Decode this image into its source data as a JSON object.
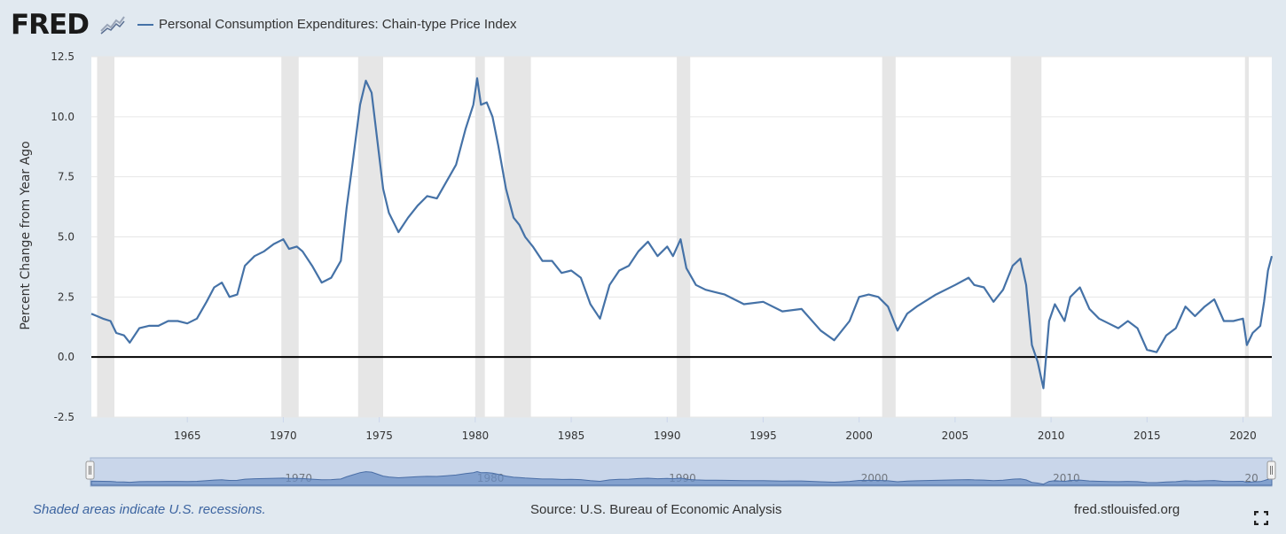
{
  "header": {
    "logo_text": "FRED",
    "logo_icon": "fred-chart-icon",
    "legend_label": "Personal Consumption Expenditures: Chain-type Price Index"
  },
  "colors": {
    "background": "#e1e9f0",
    "plot_background": "#ffffff",
    "series": "#4572a7",
    "recession": "#e6e6e6",
    "gridline": "#e6e6e6",
    "zero_line": "#000000",
    "navigator_fill": "#c9d6ea",
    "navigator_area": "#6b8fc4",
    "footnote": "#3c64a0"
  },
  "footer": {
    "note": "Shaded areas indicate U.S. recessions.",
    "source": "Source: U.S. Bureau of Economic Analysis",
    "site": "fred.stlouisfed.org",
    "fullscreen_icon": "fullscreen-icon"
  },
  "chart_data": {
    "type": "line",
    "title": "Personal Consumption Expenditures: Chain-type Price Index",
    "ylabel": "Percent Change from Year Ago",
    "xlabel": "",
    "xlim": [
      1960.0,
      2021.5
    ],
    "ylim": [
      -2.5,
      12.5
    ],
    "y_ticks": [
      "-2.5",
      "0.0",
      "2.5",
      "5.0",
      "7.5",
      "10.0",
      "12.5"
    ],
    "y_tick_values": [
      -2.5,
      0,
      2.5,
      5,
      7.5,
      10,
      12.5
    ],
    "x_ticks": [
      "1965",
      "1970",
      "1975",
      "1980",
      "1985",
      "1990",
      "1995",
      "2000",
      "2005",
      "2010",
      "2015",
      "2020"
    ],
    "x_tick_values": [
      1965,
      1970,
      1975,
      1980,
      1985,
      1990,
      1995,
      2000,
      2005,
      2010,
      2015,
      2020
    ],
    "navigator_ticks": [
      "1970",
      "1980",
      "1990",
      "2000",
      "2010",
      "20"
    ],
    "navigator_tick_values": [
      1970,
      1980,
      1990,
      2000,
      2010,
      2020
    ],
    "grid": true,
    "recessions": [
      [
        1960.3,
        1961.2
      ],
      [
        1969.9,
        1970.8
      ],
      [
        1973.9,
        1975.2
      ],
      [
        1980.0,
        1980.5
      ],
      [
        1981.5,
        1982.9
      ],
      [
        1990.5,
        1991.2
      ],
      [
        2001.2,
        2001.9
      ],
      [
        2007.9,
        2009.5
      ],
      [
        2020.1,
        2020.3
      ]
    ],
    "series": [
      {
        "name": "Personal Consumption Expenditures: Chain-type Price Index",
        "x": [
          1960.0,
          1960.3,
          1960.6,
          1961.0,
          1961.3,
          1961.7,
          1962.0,
          1962.5,
          1963.0,
          1963.5,
          1964.0,
          1964.5,
          1965.0,
          1965.5,
          1966.0,
          1966.4,
          1966.8,
          1967.2,
          1967.6,
          1968.0,
          1968.5,
          1969.0,
          1969.5,
          1970.0,
          1970.3,
          1970.7,
          1971.0,
          1971.5,
          1972.0,
          1972.5,
          1973.0,
          1973.3,
          1973.6,
          1974.0,
          1974.3,
          1974.6,
          1974.9,
          1975.2,
          1975.5,
          1976.0,
          1976.5,
          1977.0,
          1977.5,
          1978.0,
          1978.5,
          1979.0,
          1979.5,
          1979.9,
          1980.1,
          1980.3,
          1980.6,
          1980.9,
          1981.2,
          1981.6,
          1982.0,
          1982.3,
          1982.6,
          1983.0,
          1983.5,
          1984.0,
          1984.5,
          1985.0,
          1985.5,
          1986.0,
          1986.5,
          1987.0,
          1987.5,
          1988.0,
          1988.5,
          1989.0,
          1989.5,
          1990.0,
          1990.3,
          1990.7,
          1991.0,
          1991.5,
          1992.0,
          1992.5,
          1993.0,
          1994.0,
          1995.0,
          1996.0,
          1997.0,
          1998.0,
          1998.7,
          1999.5,
          2000.0,
          2000.5,
          2001.0,
          2001.5,
          2002.0,
          2002.5,
          2003.0,
          2004.0,
          2005.0,
          2005.7,
          2006.0,
          2006.5,
          2007.0,
          2007.5,
          2008.0,
          2008.4,
          2008.7,
          2009.0,
          2009.3,
          2009.6,
          2009.9,
          2010.2,
          2010.7,
          2011.0,
          2011.5,
          2012.0,
          2012.5,
          2013.0,
          2013.5,
          2014.0,
          2014.5,
          2015.0,
          2015.5,
          2016.0,
          2016.5,
          2017.0,
          2017.5,
          2018.0,
          2018.5,
          2019.0,
          2019.5,
          2020.0,
          2020.2,
          2020.5,
          2020.9,
          2021.1,
          2021.3,
          2021.5
        ],
        "y": [
          1.8,
          1.7,
          1.6,
          1.5,
          1.0,
          0.9,
          0.6,
          1.2,
          1.3,
          1.3,
          1.5,
          1.5,
          1.4,
          1.6,
          2.3,
          2.9,
          3.1,
          2.5,
          2.6,
          3.8,
          4.2,
          4.4,
          4.7,
          4.9,
          4.5,
          4.6,
          4.4,
          3.8,
          3.1,
          3.3,
          4.0,
          6.2,
          8.0,
          10.5,
          11.5,
          11.0,
          9.0,
          7.0,
          6.0,
          5.2,
          5.8,
          6.3,
          6.7,
          6.6,
          7.3,
          8.0,
          9.5,
          10.5,
          11.6,
          10.5,
          10.6,
          10.0,
          8.8,
          7.0,
          5.8,
          5.5,
          5.0,
          4.6,
          4.0,
          4.0,
          3.5,
          3.6,
          3.3,
          2.2,
          1.6,
          3.0,
          3.6,
          3.8,
          4.4,
          4.8,
          4.2,
          4.6,
          4.2,
          4.9,
          3.7,
          3.0,
          2.8,
          2.7,
          2.6,
          2.2,
          2.3,
          1.9,
          2.0,
          1.1,
          0.7,
          1.5,
          2.5,
          2.6,
          2.5,
          2.1,
          1.1,
          1.8,
          2.1,
          2.6,
          3.0,
          3.3,
          3.0,
          2.9,
          2.3,
          2.8,
          3.8,
          4.1,
          3.0,
          0.5,
          -0.2,
          -1.3,
          1.5,
          2.2,
          1.5,
          2.5,
          2.9,
          2.0,
          1.6,
          1.4,
          1.2,
          1.5,
          1.2,
          0.3,
          0.2,
          0.9,
          1.2,
          2.1,
          1.7,
          2.1,
          2.4,
          1.5,
          1.5,
          1.6,
          0.5,
          1.0,
          1.3,
          2.3,
          3.6,
          4.2
        ]
      }
    ]
  }
}
